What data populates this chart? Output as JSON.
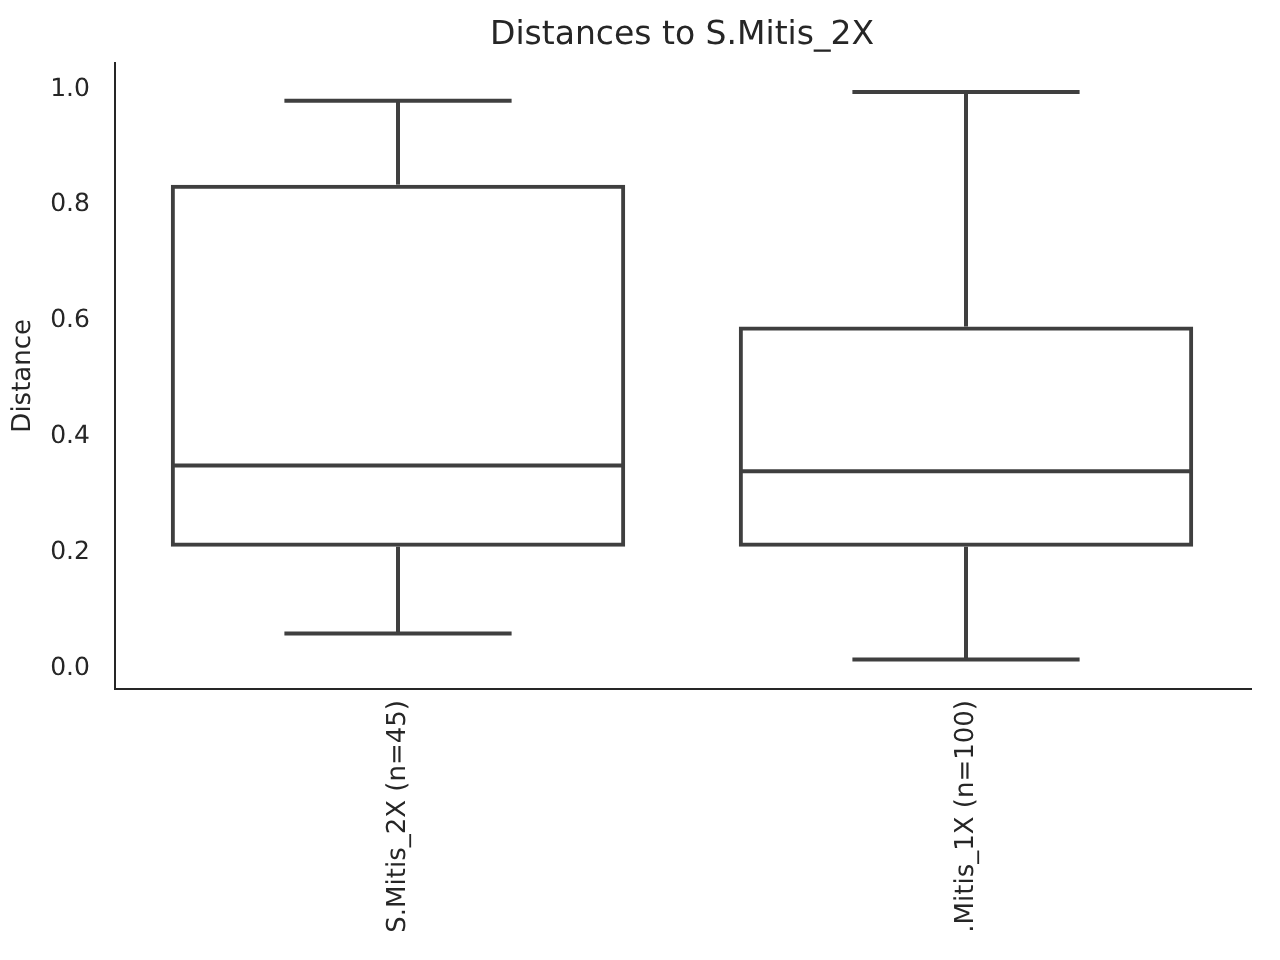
{
  "chart_data": {
    "type": "box",
    "title": "Distances to S.Mitis_2X",
    "ylabel": "Distance",
    "categories": [
      "S.Mitis_2X (n=45)",
      ".Mitis_1X (n=100)"
    ],
    "color": "#3f3f3f",
    "boxes": [
      {
        "low": 0.06,
        "q1": 0.21,
        "median": 0.35,
        "q3": 0.835,
        "high": 0.98
      },
      {
        "low": 0.015,
        "q1": 0.21,
        "median": 0.34,
        "q3": 0.59,
        "high": 0.995
      }
    ],
    "ylim": [
      -0.034,
      1.044
    ],
    "yticks": [
      {
        "value": 0,
        "label": "0.0"
      },
      0.2,
      0.4,
      0.6,
      0.8,
      {
        "value": 1,
        "label": "1.0"
      }
    ]
  }
}
